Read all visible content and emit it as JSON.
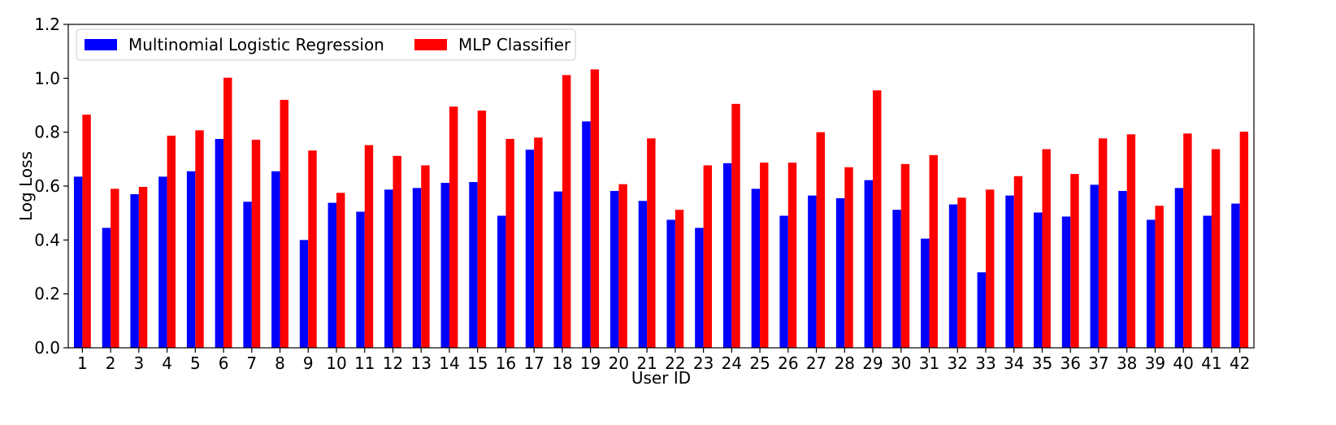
{
  "chart_data": {
    "type": "bar",
    "title": "",
    "xlabel": "User ID",
    "ylabel": "Log Loss",
    "ylim": [
      0,
      1.2
    ],
    "yticks": [
      "0.0",
      "0.2",
      "0.4",
      "0.6",
      "0.8",
      "1.0",
      "1.2"
    ],
    "grid": false,
    "legend_position": "top-left",
    "categories": [
      "1",
      "2",
      "3",
      "4",
      "5",
      "6",
      "7",
      "8",
      "9",
      "10",
      "11",
      "12",
      "13",
      "14",
      "15",
      "16",
      "17",
      "18",
      "19",
      "20",
      "21",
      "22",
      "23",
      "24",
      "25",
      "26",
      "27",
      "28",
      "29",
      "30",
      "31",
      "32",
      "33",
      "34",
      "35",
      "36",
      "37",
      "38",
      "39",
      "40",
      "41",
      "42"
    ],
    "series": [
      {
        "name": "Multinomial Logistic Regression",
        "color": "#0000ff",
        "values": [
          0.635,
          0.445,
          0.57,
          0.635,
          0.655,
          0.775,
          0.542,
          0.655,
          0.4,
          0.538,
          0.505,
          0.587,
          0.593,
          0.612,
          0.615,
          0.49,
          0.735,
          0.58,
          0.84,
          0.582,
          0.545,
          0.475,
          0.445,
          0.685,
          0.59,
          0.49,
          0.565,
          0.555,
          0.622,
          0.512,
          0.405,
          0.532,
          0.28,
          0.565,
          0.502,
          0.487,
          0.605,
          0.582,
          0.475,
          0.593,
          0.49,
          0.535
        ]
      },
      {
        "name": "MLP Classifier",
        "color": "#ff0000",
        "values": [
          0.865,
          0.59,
          0.597,
          0.787,
          0.807,
          1.002,
          0.772,
          0.92,
          0.732,
          0.575,
          0.752,
          0.712,
          0.677,
          0.895,
          0.88,
          0.775,
          0.78,
          1.012,
          1.033,
          0.607,
          0.777,
          0.512,
          0.677,
          0.905,
          0.687,
          0.687,
          0.8,
          0.67,
          0.955,
          0.682,
          0.715,
          0.557,
          0.587,
          0.637,
          0.737,
          0.645,
          0.777,
          0.792,
          0.527,
          0.795,
          0.737,
          0.802
        ]
      }
    ]
  }
}
